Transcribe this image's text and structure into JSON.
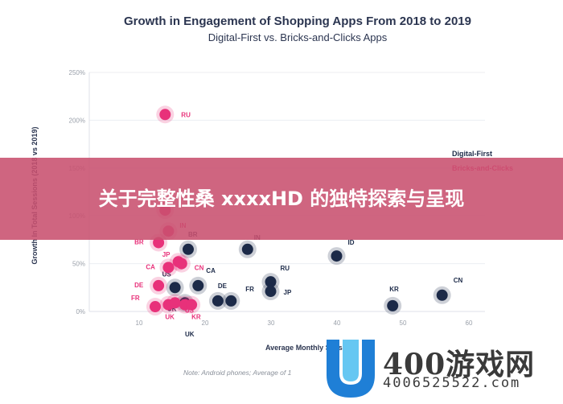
{
  "chart_data": {
    "type": "scatter",
    "title": "Growth in Engagement of Shopping Apps From 2018 to 2019",
    "subtitle": "Digital-First vs. Bricks-and-Clicks Apps",
    "xlabel": "Average Monthly Sessio",
    "ylabel": "Growth In Total Sessions (2018 vs 2019)",
    "note": "Note: Android phones; Average of 1",
    "xlim": [
      0,
      60
    ],
    "ylim": [
      0,
      250
    ],
    "x_ticks": [
      "10",
      "20",
      "30",
      "40",
      "50",
      "60"
    ],
    "y_ticks": [
      "0%",
      "50%",
      "100%",
      "150%",
      "200%",
      "250%"
    ],
    "legend_position": "right",
    "series": [
      {
        "name": "Digital-First",
        "color": "#1c2a48",
        "points": [
          {
            "label": "BR",
            "x": 15,
            "y": 65
          },
          {
            "label": "IN",
            "x": 24,
            "y": 65
          },
          {
            "label": "ID",
            "x": 37.5,
            "y": 58
          },
          {
            "label": "RU",
            "x": 27.5,
            "y": 31
          },
          {
            "label": "JP",
            "x": 27.5,
            "y": 21
          },
          {
            "label": "US",
            "x": 13,
            "y": 25
          },
          {
            "label": "CA",
            "x": 16.5,
            "y": 27
          },
          {
            "label": "DE",
            "x": 19.5,
            "y": 11
          },
          {
            "label": "FR",
            "x": 21.5,
            "y": 11
          },
          {
            "label": "UK",
            "x": 14.5,
            "y": 9
          },
          {
            "label": "KR",
            "x": 46,
            "y": 6
          },
          {
            "label": "CN",
            "x": 53.5,
            "y": 17
          }
        ]
      },
      {
        "name": "Bricks-and-Clicks",
        "color": "#e8317a",
        "points": [
          {
            "label": "RU",
            "x": 11.5,
            "y": 206
          },
          {
            "label": "",
            "x": 11.5,
            "y": 106
          },
          {
            "label": "IN",
            "x": 12,
            "y": 84
          },
          {
            "label": "BR",
            "x": 10.5,
            "y": 72
          },
          {
            "label": "JP",
            "x": 13.5,
            "y": 52
          },
          {
            "label": "CN",
            "x": 14,
            "y": 50
          },
          {
            "label": "CA",
            "x": 12,
            "y": 46
          },
          {
            "label": "DE",
            "x": 10.5,
            "y": 27
          },
          {
            "label": "FR",
            "x": 10,
            "y": 5
          },
          {
            "label": "UK",
            "x": 12,
            "y": 7
          },
          {
            "label": "",
            "x": 13,
            "y": 9
          },
          {
            "label": "US",
            "x": 14.5,
            "y": 7
          },
          {
            "label": "KR",
            "x": 15.5,
            "y": 7
          }
        ]
      }
    ],
    "outer_labels": [
      {
        "label": "UK",
        "series": 0
      }
    ]
  },
  "banner": {
    "text": "关于完整性桑 xxxxHD 的独特探索与呈现"
  },
  "watermark": {
    "main": "400游戏网",
    "sub": "4006525522.com"
  }
}
